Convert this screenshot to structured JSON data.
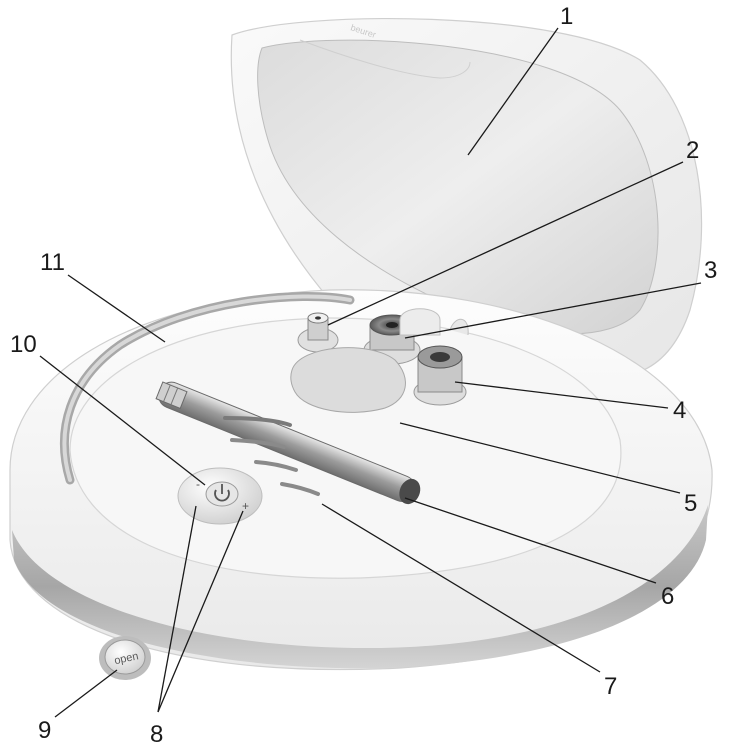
{
  "device": {
    "brand_text": "beurer",
    "open_button_label": "open",
    "minus_sign": "-",
    "plus_sign": "+"
  },
  "callouts": [
    {
      "label": "1"
    },
    {
      "label": "2"
    },
    {
      "label": "3"
    },
    {
      "label": "4"
    },
    {
      "label": "5"
    },
    {
      "label": "6"
    },
    {
      "label": "7"
    },
    {
      "label": "8"
    },
    {
      "label": "9"
    },
    {
      "label": "10"
    },
    {
      "label": "11"
    }
  ],
  "colors": {
    "outline": "#1a1a1a",
    "shell": "#f4f4f4",
    "metal": "#9a9a9a",
    "band": "#b9b9b9"
  }
}
